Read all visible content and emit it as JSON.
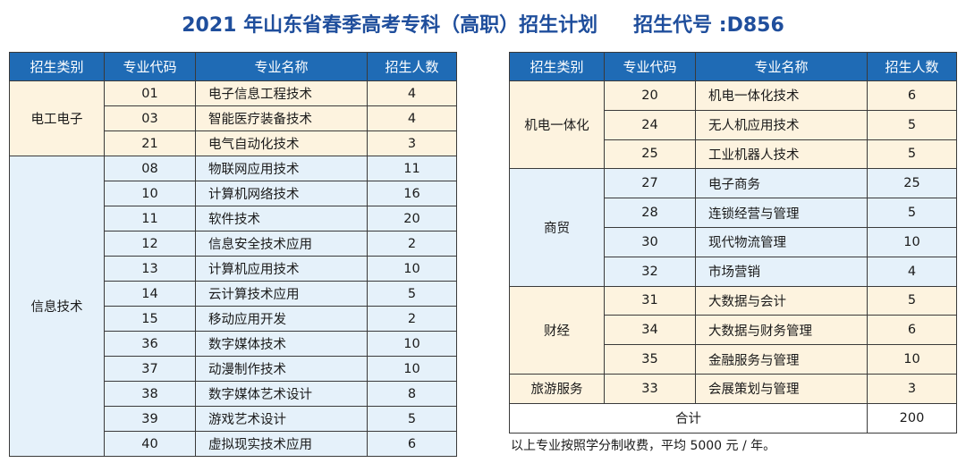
{
  "title": {
    "main": "2021 年山东省春季高考专科（高职）招生计划",
    "code": "招生代号 :D856"
  },
  "headers": [
    "招生类别",
    "专业代码",
    "专业名称",
    "招生人数"
  ],
  "left_groups": [
    {
      "category": "电工电子",
      "rows": [
        {
          "code": "01",
          "name": "电子信息工程技术",
          "count": "4"
        },
        {
          "code": "03",
          "name": "智能医疗装备技术",
          "count": "4"
        },
        {
          "code": "21",
          "name": "电气自动化技术",
          "count": "3"
        }
      ]
    },
    {
      "category": "信息技术",
      "rows": [
        {
          "code": "08",
          "name": "物联网应用技术",
          "count": "11"
        },
        {
          "code": "10",
          "name": "计算机网络技术",
          "count": "16"
        },
        {
          "code": "11",
          "name": "软件技术",
          "count": "20"
        },
        {
          "code": "12",
          "name": "信息安全技术应用",
          "count": "2"
        },
        {
          "code": "13",
          "name": "计算机应用技术",
          "count": "10"
        },
        {
          "code": "14",
          "name": "云计算技术应用",
          "count": "5"
        },
        {
          "code": "15",
          "name": "移动应用开发",
          "count": "2"
        },
        {
          "code": "36",
          "name": "数字媒体技术",
          "count": "10"
        },
        {
          "code": "37",
          "name": "动漫制作技术",
          "count": "10"
        },
        {
          "code": "38",
          "name": "数字媒体艺术设计",
          "count": "8"
        },
        {
          "code": "39",
          "name": "游戏艺术设计",
          "count": "5"
        },
        {
          "code": "40",
          "name": "虚拟现实技术应用",
          "count": "6"
        }
      ]
    }
  ],
  "right_groups": [
    {
      "category": "机电一体化",
      "rows": [
        {
          "code": "20",
          "name": "机电一体化技术",
          "count": "6"
        },
        {
          "code": "24",
          "name": "无人机应用技术",
          "count": "5"
        },
        {
          "code": "25",
          "name": "工业机器人技术",
          "count": "5"
        }
      ]
    },
    {
      "category": "商贸",
      "rows": [
        {
          "code": "27",
          "name": "电子商务",
          "count": "25"
        },
        {
          "code": "28",
          "name": "连锁经营与管理",
          "count": "5"
        },
        {
          "code": "30",
          "name": "现代物流管理",
          "count": "10"
        },
        {
          "code": "32",
          "name": "市场营销",
          "count": "4"
        }
      ]
    },
    {
      "category": "财经",
      "rows": [
        {
          "code": "31",
          "name": "大数据与会计",
          "count": "5"
        },
        {
          "code": "34",
          "name": "大数据与财务管理",
          "count": "6"
        },
        {
          "code": "35",
          "name": "金融服务与管理",
          "count": "10"
        }
      ]
    },
    {
      "category": "旅游服务",
      "rows": [
        {
          "code": "33",
          "name": "会展策划与管理",
          "count": "3"
        }
      ]
    }
  ],
  "total": {
    "label": "合计",
    "value": "200"
  },
  "note": "以上专业按照学分制收费，平均 5000 元 / 年。",
  "colors": {
    "title": "#1f4e9c",
    "header_bg": "#1f6bb5",
    "row_warm": "#fdf3df",
    "row_cool": "#e5f1fa"
  }
}
